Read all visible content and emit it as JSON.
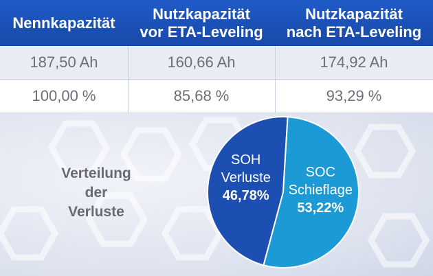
{
  "table": {
    "headers": [
      "Nennkapazität",
      "Nutzkapazität vor ETA-Leveling",
      "Nutzkapazität nach ETA-Leveling"
    ],
    "header_lines": [
      [
        "Nennkapazität"
      ],
      [
        "Nutzkapazität",
        "vor ETA-Leveling"
      ],
      [
        "Nutzkapazität",
        "nach ETA-Leveling"
      ]
    ],
    "rows": [
      [
        "187,50 Ah",
        "160,66 Ah",
        "174,92 Ah"
      ],
      [
        "100,00 %",
        "85,68 %",
        "93,29 %"
      ]
    ]
  },
  "distribution_label_lines": [
    "Verteilung",
    "der",
    "Verluste"
  ],
  "chart_data": {
    "type": "pie",
    "slices": [
      {
        "name_lines": [
          "SOH",
          "Verluste"
        ],
        "value": 46.78,
        "value_label": "46,78%",
        "color": "#1d4fb3"
      },
      {
        "name_lines": [
          "SOC",
          "Schieflage"
        ],
        "value": 53.22,
        "value_label": "53,22%",
        "color": "#1b9ad6"
      }
    ]
  },
  "colors": {
    "header_bg": "#1f5bc7",
    "row1_bg": "#e9ecf4",
    "text_grey": "#6b6f78"
  }
}
